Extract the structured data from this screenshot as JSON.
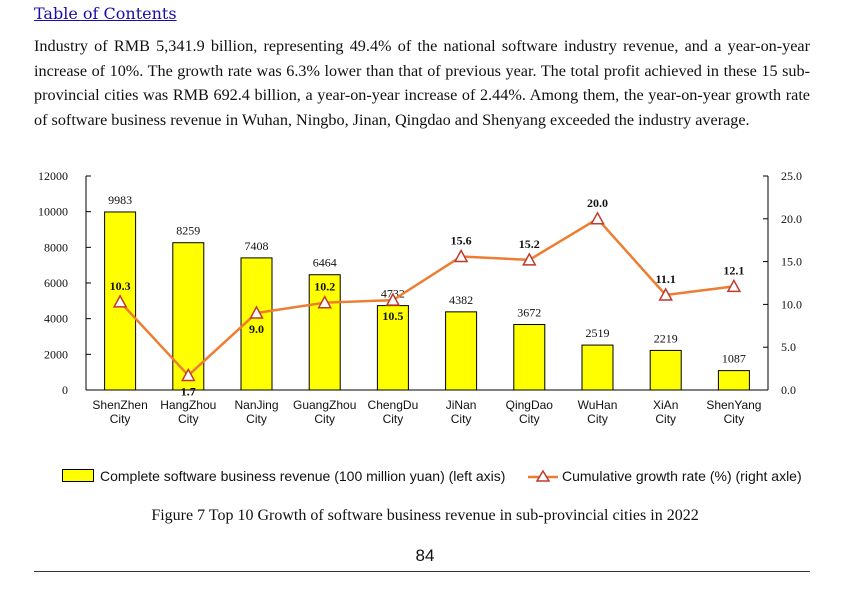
{
  "header": {
    "toc_link": "Table of Contents"
  },
  "body": {
    "paragraph": "Industry of RMB 5,341.9 billion, representing 49.4% of the national software industry revenue, and a year-on-year increase of 10%. The growth rate was 6.3% lower than that of previous year. The total profit achieved in these 15 sub-provincial cities was RMB 692.4 billion, a year-on-year increase of 2.44%. Among them, the year-on-year growth rate of software business revenue in Wuhan, Ningbo, Jinan, Qingdao and Shenyang exceeded the industry average."
  },
  "chart_data": {
    "type": "bar",
    "title": "Figure 7 Top 10 Growth of software business revenue in sub-provincial cities in 2022",
    "categories": [
      [
        "ShenZhen",
        "City"
      ],
      [
        "HangZhou",
        "City"
      ],
      [
        "NanJing",
        "City"
      ],
      [
        "GuangZhou",
        "City"
      ],
      [
        "ChengDu",
        "City"
      ],
      [
        "JiNan",
        "City"
      ],
      [
        "QingDao",
        "City"
      ],
      [
        "WuHan",
        "City"
      ],
      [
        "XiAn",
        "City"
      ],
      [
        "ShenYang",
        "City"
      ]
    ],
    "series": [
      {
        "name": "Complete software business revenue (100 million yuan) (left axis)",
        "type": "bar",
        "axis": "left",
        "values": [
          9983,
          8259,
          7408,
          6464,
          4732,
          4382,
          3672,
          2519,
          2219,
          1087
        ],
        "labels": [
          "9983",
          "8259",
          "7408",
          "6464",
          "4732",
          "4382",
          "3672",
          "2519",
          "2219",
          "1087"
        ],
        "color": "#ffff00"
      },
      {
        "name": "Cumulative growth rate (%) (right axle)",
        "type": "line",
        "axis": "right",
        "values": [
          10.3,
          1.7,
          9.0,
          10.2,
          10.5,
          15.6,
          15.2,
          20.0,
          11.1,
          12.1
        ],
        "labels": [
          "10.3",
          "1.7",
          "9.0",
          "10.2",
          "10.5",
          "15.6",
          "15.2",
          "20.0",
          "11.1",
          "12.1"
        ],
        "color": "#ed7d31"
      }
    ],
    "left_axis": {
      "ylim": [
        0,
        12000
      ],
      "ticks": [
        "0",
        "2000",
        "4000",
        "6000",
        "8000",
        "10000",
        "12000"
      ]
    },
    "right_axis": {
      "ylim": [
        0,
        25
      ],
      "ticks": [
        "0.0",
        "5.0",
        "10.0",
        "15.0",
        "20.0",
        "25.0"
      ]
    },
    "legend_position": "bottom"
  },
  "legend": {
    "bar_label": "Complete software business revenue (100 million yuan) (left axis)",
    "line_label": "Cumulative growth rate (%) (right axle)"
  },
  "caption": "Figure 7 Top 10 Growth of software business revenue in sub-provincial cities in 2022",
  "page_number": "84",
  "colors": {
    "bar_fill": "#ffff00",
    "line": "#ed7d31",
    "link": "#1a0dab"
  }
}
